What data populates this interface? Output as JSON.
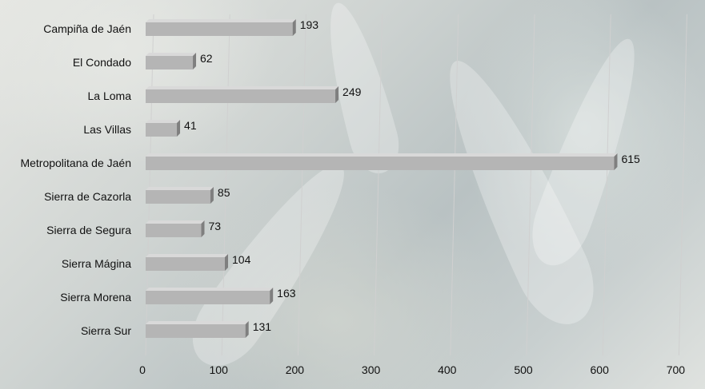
{
  "chart_data": {
    "type": "bar",
    "orientation": "horizontal",
    "categories": [
      "Campiña de Jaén",
      "El Condado",
      "La Loma",
      "Las Villas",
      "Metropolitana de Jaén",
      "Sierra de Cazorla",
      "Sierra de Segura",
      "Sierra Mágina",
      "Sierra Morena",
      "Sierra Sur"
    ],
    "values": [
      193,
      62,
      249,
      41,
      615,
      85,
      73,
      104,
      163,
      131
    ],
    "data_labels": [
      "193",
      "62",
      "249",
      "41",
      "615",
      "85",
      "73",
      "104",
      "163",
      "131"
    ],
    "x_ticks": [
      "0",
      "100",
      "200",
      "300",
      "400",
      "500",
      "600",
      "700"
    ],
    "xlim": [
      0,
      700
    ],
    "grid": true,
    "legend": "none",
    "title": "",
    "xlabel": "",
    "ylabel": "",
    "colors": {
      "bar_front": "#b5b5b5",
      "bar_top": "#d9d9d9",
      "bar_side": "#7f7f7f",
      "grid": "#d0d0d0"
    }
  }
}
